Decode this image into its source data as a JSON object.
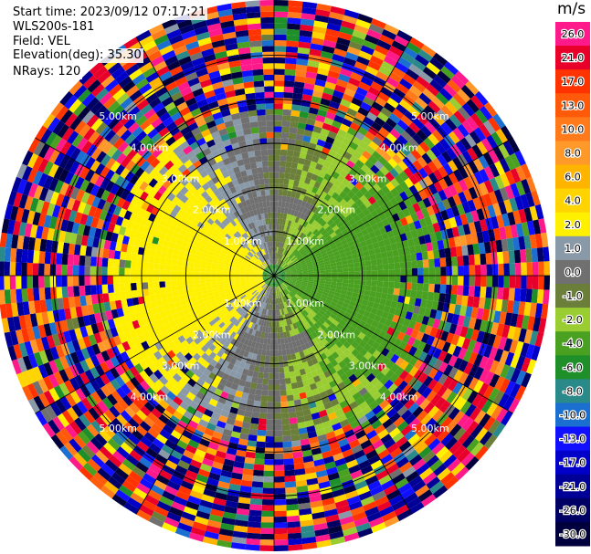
{
  "info": {
    "start_time": "Start time: 2023/09/12 07:17:21",
    "instrument": "WLS200s-181",
    "field": "Field: VEL",
    "elevation": "Elevation(deg): 35.30",
    "nrays": "NRays: 120"
  },
  "colorbar": {
    "unit": "m/s",
    "levels": [
      {
        "value": 26.0,
        "label": "26.0",
        "color": "#ff1a8c"
      },
      {
        "value": 21.0,
        "label": "21.0",
        "color": "#e8002a"
      },
      {
        "value": 17.0,
        "label": "17.0",
        "color": "#ff3300"
      },
      {
        "value": 13.0,
        "label": "13.0",
        "color": "#ff5a0a"
      },
      {
        "value": 10.0,
        "label": "10.0",
        "color": "#ff7a1a"
      },
      {
        "value": 8.0,
        "label": "8.0",
        "color": "#ff9a2a"
      },
      {
        "value": 6.0,
        "label": "6.0",
        "color": "#ffb400"
      },
      {
        "value": 4.0,
        "label": "4.0",
        "color": "#ffd400"
      },
      {
        "value": 2.0,
        "label": "2.0",
        "color": "#fff000"
      },
      {
        "value": 1.0,
        "label": "1.0",
        "color": "#8a99a8"
      },
      {
        "value": 0.0,
        "label": "0.0",
        "color": "#707070"
      },
      {
        "value": -1.0,
        "label": "-1.0",
        "color": "#6b7f3a"
      },
      {
        "value": -2.0,
        "label": "-2.0",
        "color": "#9acd32"
      },
      {
        "value": -4.0,
        "label": "-4.0",
        "color": "#4aa020"
      },
      {
        "value": -6.0,
        "label": "-6.0",
        "color": "#1f8f2a"
      },
      {
        "value": -8.0,
        "label": "-8.0",
        "color": "#2a8a8a"
      },
      {
        "value": -10.0,
        "label": "-10.0",
        "color": "#1a6fd0"
      },
      {
        "value": -13.0,
        "label": "-13.0",
        "color": "#1010ff"
      },
      {
        "value": -17.0,
        "label": "-17.0",
        "color": "#0000c8"
      },
      {
        "value": -21.0,
        "label": "-21.0",
        "color": "#000096"
      },
      {
        "value": -26.0,
        "label": "-26.0",
        "color": "#000064"
      },
      {
        "value": -30.0,
        "label": "-30.0",
        "color": "#00003c"
      }
    ]
  },
  "chart_data": {
    "type": "heatmap",
    "projection": "polar-ppi",
    "field": "VEL",
    "unit": "m/s",
    "elevation_deg": 35.3,
    "n_rays": 120,
    "range_ring_labels": [
      "1.00km",
      "2.00km",
      "3.00km",
      "4.00km",
      "5.00km"
    ],
    "range_rings_km": [
      1,
      2,
      3,
      4,
      5
    ],
    "spoke_azimuths_deg": [
      0,
      30,
      60,
      90,
      120,
      150,
      180,
      210,
      240,
      270,
      300,
      330
    ],
    "max_range_km": 5.0,
    "color_levels": [
      -30,
      -26,
      -21,
      -17,
      -13,
      -10,
      -8,
      -6,
      -4,
      -2,
      -1,
      0,
      1,
      2,
      4,
      6,
      8,
      10,
      13,
      17,
      21,
      26
    ],
    "velocity_pattern": {
      "inner_core_km": 0.2,
      "yellow_sector_center_deg": 270,
      "olive_sector_center_deg": 90,
      "noise_beyond_km": 3.0
    }
  }
}
